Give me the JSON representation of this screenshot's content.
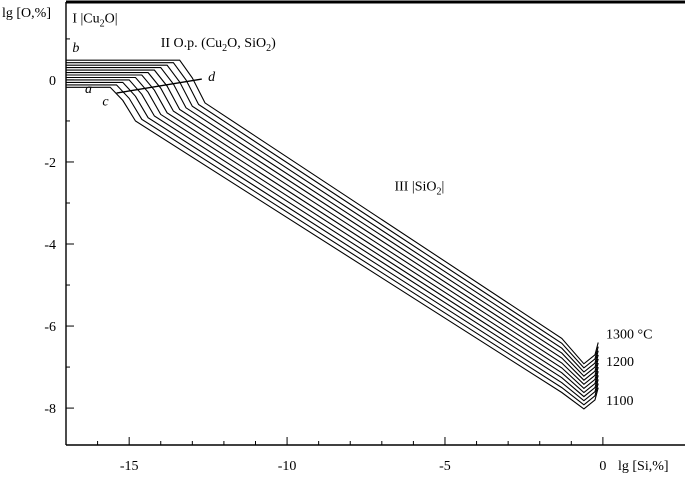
{
  "chart_data": {
    "type": "line",
    "title": "",
    "xlabel": "lg [Si,%]",
    "ylabel": "lg [O,%]",
    "xlim": [
      -17,
      2.6
    ],
    "ylim": [
      -8.9,
      1.9
    ],
    "xticks": [
      -15,
      -10,
      -5,
      0
    ],
    "yticks": [
      0,
      -2,
      -4,
      -6,
      -8
    ],
    "xtick_labels": [
      "-15",
      "-10",
      "-5",
      "0"
    ],
    "ytick_labels": [
      "0",
      "-2",
      "-4",
      "-6",
      "-8"
    ],
    "grid": false,
    "legend": "none",
    "line_color": "#000000",
    "series": [
      {
        "name": "1100",
        "points": [
          [
            -17,
            -0.18
          ],
          [
            -15.6,
            -0.18
          ],
          [
            -15.2,
            -0.5
          ],
          [
            -14.8,
            -1.0
          ],
          [
            -1.3,
            -7.62
          ],
          [
            -0.6,
            -8.02
          ],
          [
            -0.25,
            -7.8
          ],
          [
            -0.15,
            -7.5
          ]
        ]
      },
      {
        "name": "",
        "points": [
          [
            -17,
            -0.12
          ],
          [
            -15.4,
            -0.12
          ],
          [
            -15.0,
            -0.45
          ],
          [
            -14.6,
            -0.96
          ],
          [
            -1.3,
            -7.5
          ],
          [
            -0.6,
            -7.92
          ],
          [
            -0.25,
            -7.7
          ],
          [
            -0.15,
            -7.4
          ]
        ]
      },
      {
        "name": "",
        "points": [
          [
            -17,
            -0.06
          ],
          [
            -15.2,
            -0.06
          ],
          [
            -14.8,
            -0.4
          ],
          [
            -14.4,
            -0.92
          ],
          [
            -1.3,
            -7.38
          ],
          [
            -0.6,
            -7.82
          ],
          [
            -0.25,
            -7.6
          ],
          [
            -0.15,
            -7.3
          ]
        ]
      },
      {
        "name": "",
        "points": [
          [
            -17,
            0.0
          ],
          [
            -15.0,
            0.0
          ],
          [
            -14.6,
            -0.35
          ],
          [
            -14.2,
            -0.88
          ],
          [
            -1.3,
            -7.26
          ],
          [
            -0.6,
            -7.72
          ],
          [
            -0.25,
            -7.5
          ],
          [
            -0.15,
            -7.2
          ]
        ]
      },
      {
        "name": "",
        "points": [
          [
            -17,
            0.06
          ],
          [
            -14.8,
            0.06
          ],
          [
            -14.4,
            -0.3
          ],
          [
            -14.0,
            -0.84
          ],
          [
            -1.3,
            -7.14
          ],
          [
            -0.6,
            -7.62
          ],
          [
            -0.25,
            -7.4
          ],
          [
            -0.15,
            -7.1
          ]
        ]
      },
      {
        "name": "",
        "points": [
          [
            -17,
            0.12
          ],
          [
            -14.6,
            0.12
          ],
          [
            -14.2,
            -0.25
          ],
          [
            -13.8,
            -0.8
          ],
          [
            -1.3,
            -7.02
          ],
          [
            -0.6,
            -7.52
          ],
          [
            -0.25,
            -7.3
          ],
          [
            -0.15,
            -7.0
          ]
        ]
      },
      {
        "name": "1200",
        "points": [
          [
            -17,
            0.18
          ],
          [
            -14.4,
            0.18
          ],
          [
            -14.0,
            -0.2
          ],
          [
            -13.6,
            -0.76
          ],
          [
            -1.3,
            -6.9
          ],
          [
            -0.6,
            -7.42
          ],
          [
            -0.25,
            -7.2
          ],
          [
            -0.15,
            -6.9
          ]
        ]
      },
      {
        "name": "",
        "points": [
          [
            -17,
            0.24
          ],
          [
            -14.2,
            0.24
          ],
          [
            -13.8,
            -0.15
          ],
          [
            -13.4,
            -0.72
          ],
          [
            -1.3,
            -6.78
          ],
          [
            -0.6,
            -7.32
          ],
          [
            -0.25,
            -7.1
          ],
          [
            -0.15,
            -6.8
          ]
        ]
      },
      {
        "name": "",
        "points": [
          [
            -17,
            0.3
          ],
          [
            -14.0,
            0.3
          ],
          [
            -13.6,
            -0.1
          ],
          [
            -13.2,
            -0.68
          ],
          [
            -1.3,
            -6.66
          ],
          [
            -0.6,
            -7.22
          ],
          [
            -0.25,
            -7.0
          ],
          [
            -0.15,
            -6.7
          ]
        ]
      },
      {
        "name": "",
        "points": [
          [
            -17,
            0.36
          ],
          [
            -13.8,
            0.36
          ],
          [
            -13.4,
            -0.05
          ],
          [
            -13.0,
            -0.64
          ],
          [
            -1.3,
            -6.54
          ],
          [
            -0.6,
            -7.12
          ],
          [
            -0.25,
            -6.9
          ],
          [
            -0.15,
            -6.6
          ]
        ]
      },
      {
        "name": "",
        "points": [
          [
            -17,
            0.42
          ],
          [
            -13.6,
            0.42
          ],
          [
            -13.2,
            0.0
          ],
          [
            -12.8,
            -0.6
          ],
          [
            -1.3,
            -6.42
          ],
          [
            -0.6,
            -7.02
          ],
          [
            -0.25,
            -6.8
          ],
          [
            -0.15,
            -6.5
          ]
        ]
      },
      {
        "name": "1300 °C",
        "points": [
          [
            -17,
            0.48
          ],
          [
            -13.4,
            0.48
          ],
          [
            -13.0,
            0.05
          ],
          [
            -12.6,
            -0.56
          ],
          [
            -1.3,
            -6.3
          ],
          [
            -0.6,
            -6.92
          ],
          [
            -0.25,
            -6.7
          ],
          [
            -0.15,
            -6.4
          ]
        ]
      }
    ],
    "boundary_line": {
      "from_label": "c",
      "to_label": "d",
      "points": [
        [
          -15.4,
          -0.32
        ],
        [
          -12.7,
          0.02
        ]
      ]
    },
    "point_labels": [
      {
        "text": "a",
        "x": -16.4,
        "y": -0.32
      },
      {
        "text": "b",
        "x": -16.8,
        "y": 0.68
      },
      {
        "text": "c",
        "x": -15.85,
        "y": -0.62
      },
      {
        "text": "d",
        "x": -12.5,
        "y": -0.02
      }
    ],
    "region_labels": [
      {
        "id": "region-1",
        "parts": [
          "I |Cu",
          "2",
          "O|"
        ],
        "x": -16.8,
        "y": 1.4
      },
      {
        "id": "region-2",
        "parts": [
          "II O.p. (Cu",
          "2",
          "O, SiO",
          "2",
          ")"
        ],
        "x": -14.0,
        "y": 0.8
      },
      {
        "id": "region-3",
        "parts": [
          "III |SiO",
          "2",
          "|"
        ],
        "x": -6.6,
        "y": -2.7
      }
    ],
    "end_labels": [
      {
        "text": "1300 °C",
        "x": 0.1,
        "y": -6.3
      },
      {
        "text": "1200",
        "x": 0.1,
        "y": -6.98
      },
      {
        "text": "1100",
        "x": 0.1,
        "y": -7.92
      }
    ]
  }
}
